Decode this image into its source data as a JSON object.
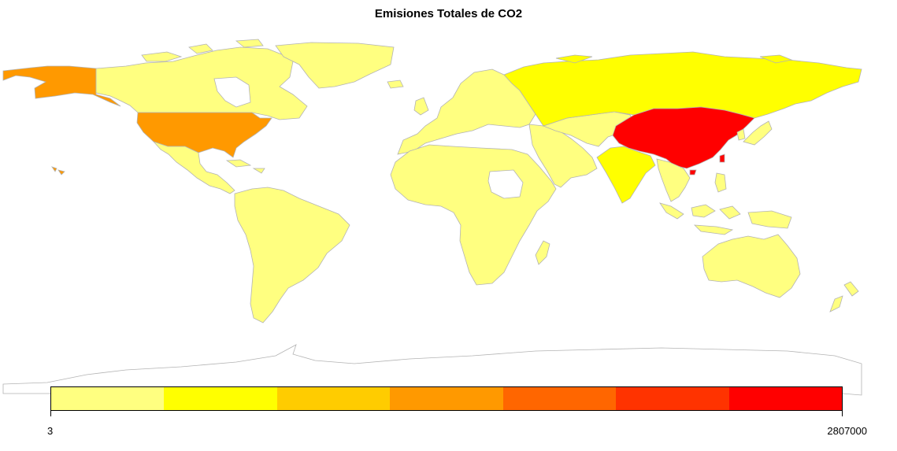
{
  "title": "Emisiones Totales de CO2",
  "legend": {
    "min_label": "3",
    "max_label": "2807000",
    "colors": [
      "#FFFF80",
      "#FFFF00",
      "#FFCC00",
      "#FF9900",
      "#FF6600",
      "#FF3300",
      "#FF0000"
    ]
  },
  "colors": {
    "border": "#b3b3b3",
    "none": "#ffffff"
  },
  "regions": [
    {
      "name": "China",
      "fill": "#FF0000"
    },
    {
      "name": "United States",
      "fill": "#FF9900"
    },
    {
      "name": "Alaska",
      "fill": "#FF9900"
    },
    {
      "name": "Russia",
      "fill": "#FFFF00"
    },
    {
      "name": "India",
      "fill": "#FFFF00"
    },
    {
      "name": "Canada",
      "fill": "#FFFF80"
    },
    {
      "name": "Greenland",
      "fill": "#FFFF80"
    },
    {
      "name": "Mexico",
      "fill": "#FFFF80"
    },
    {
      "name": "South America",
      "fill": "#FFFF80"
    },
    {
      "name": "Europe",
      "fill": "#FFFF80"
    },
    {
      "name": "Africa",
      "fill": "#FFFF80"
    },
    {
      "name": "Middle East",
      "fill": "#FFFF80"
    },
    {
      "name": "Central Asia",
      "fill": "#FFFF80"
    },
    {
      "name": "Southeast Asia",
      "fill": "#FFFF80"
    },
    {
      "name": "Japan",
      "fill": "#FFFF80"
    },
    {
      "name": "Indonesia",
      "fill": "#FFFF80"
    },
    {
      "name": "Australia",
      "fill": "#FFFF80"
    },
    {
      "name": "New Zealand",
      "fill": "#FFFF80"
    },
    {
      "name": "Madagascar",
      "fill": "#FFFF80"
    },
    {
      "name": "Antarctica",
      "fill": "#ffffff"
    },
    {
      "name": "Sudan",
      "fill": "#ffffff"
    }
  ]
}
